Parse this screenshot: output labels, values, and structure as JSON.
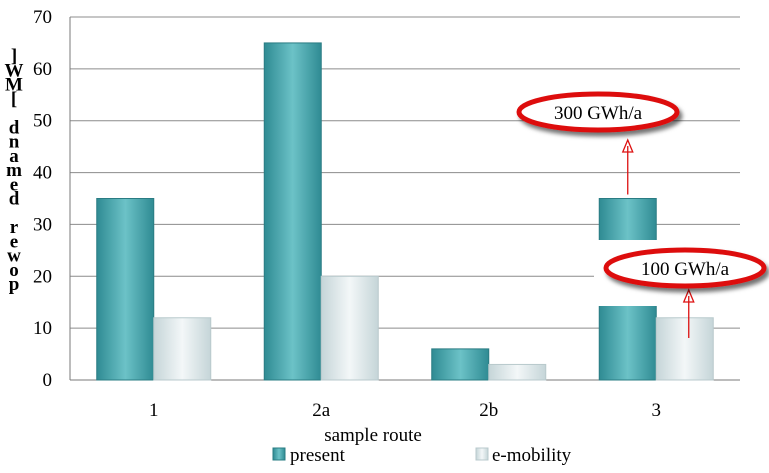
{
  "chart_data": {
    "type": "bar",
    "categories": [
      "1",
      "2a",
      "2b",
      "3"
    ],
    "series": [
      {
        "name": "present",
        "values": [
          35,
          65,
          6,
          35
        ]
      },
      {
        "name": "e-mobility",
        "values": [
          12,
          20,
          3,
          12
        ]
      }
    ],
    "title": "",
    "xlabel": "sample route",
    "ylabel": "power demand [MW]",
    "ylim": [
      0,
      70
    ],
    "yticks": [
      0,
      10,
      20,
      30,
      40,
      50,
      60,
      70
    ],
    "grid": true,
    "legend_position": "bottom",
    "colors": {
      "present": "#4da7ad",
      "e-mobility": "#dde8ea",
      "annotation": "#dd1111"
    },
    "annotations": [
      {
        "label": "300 GWh/a",
        "category": "3",
        "series": "present"
      },
      {
        "label": "100 GWh/a",
        "category": "3",
        "series": "e-mobility"
      }
    ]
  }
}
